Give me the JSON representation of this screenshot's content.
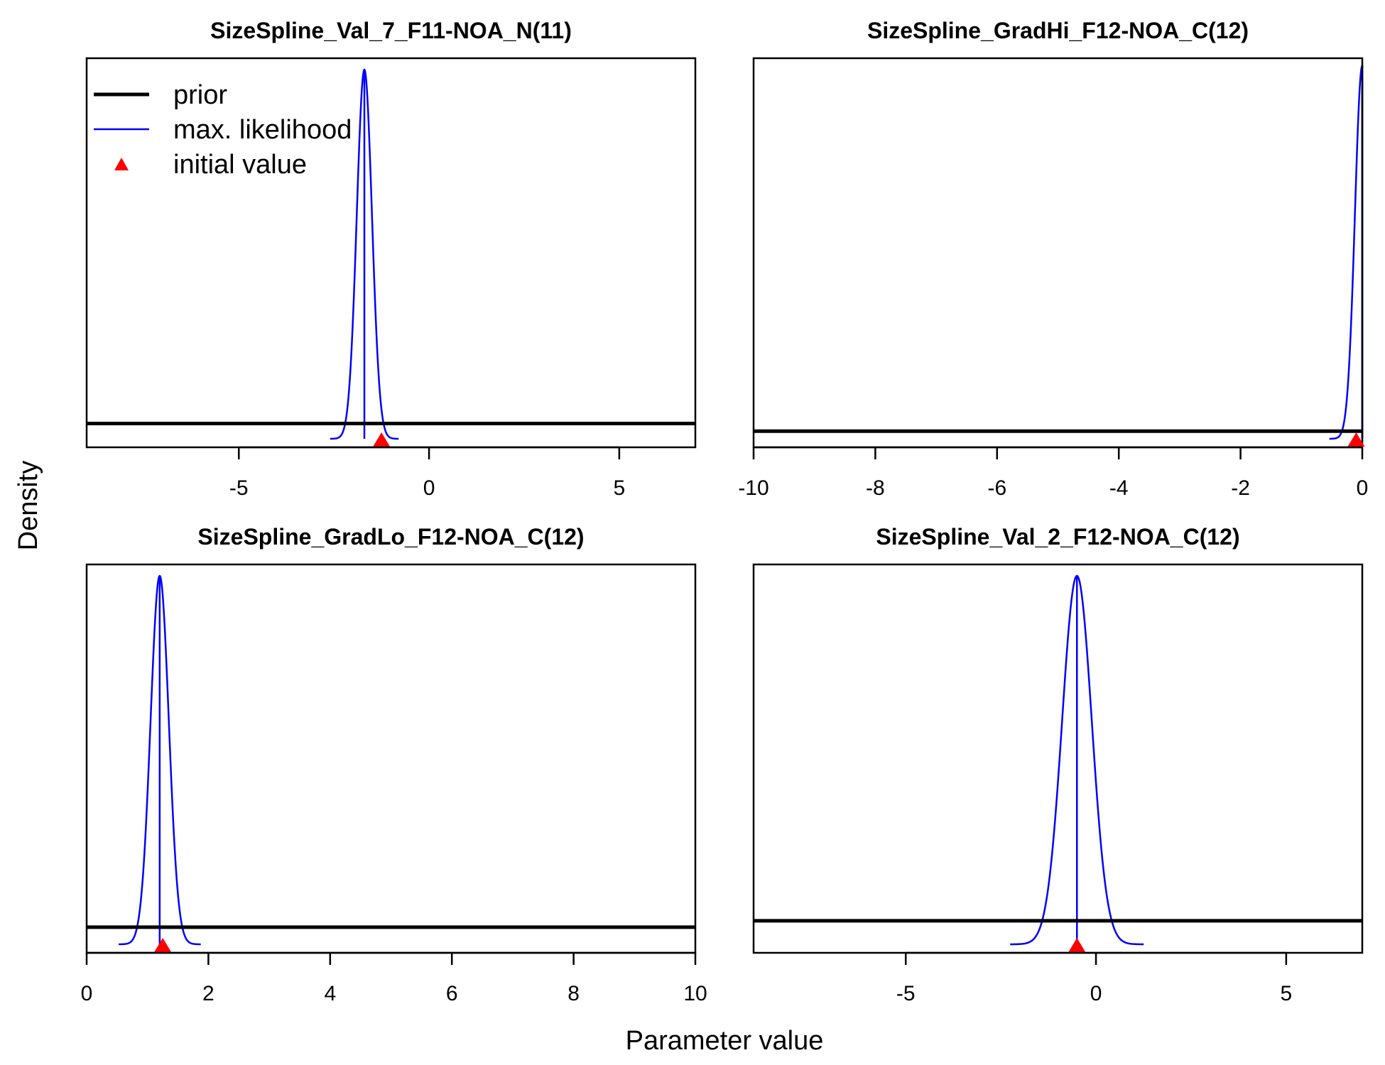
{
  "figure": {
    "xlabel": "Parameter value",
    "ylabel": "Density",
    "colors": {
      "prior": "#000000",
      "likelihood": "#0000ff",
      "initial": "#ff0000",
      "frame": "#000000"
    }
  },
  "legend": {
    "placement": "top-left of first panel",
    "items": [
      {
        "label": "prior",
        "symbol": "line",
        "color": "#000000"
      },
      {
        "label": "max. likelihood",
        "symbol": "line",
        "color": "#0000ff"
      },
      {
        "label": "initial value",
        "symbol": "triangle",
        "color": "#ff0000"
      }
    ]
  },
  "chart_data": [
    {
      "type": "line",
      "title": "SizeSpline_Val_7_F11-NOA_N(11)",
      "xlim": [
        -9,
        7
      ],
      "xticks": [
        -5,
        0,
        5
      ],
      "prior_density": 0.04,
      "likelihood": {
        "mean": -1.7,
        "sd": 0.2,
        "peak_density": 0.97
      },
      "initial_value": -1.25
    },
    {
      "type": "line",
      "title": "SizeSpline_GradHi_F12-NOA_C(12)",
      "xlim": [
        -10,
        0
      ],
      "xticks": [
        -10,
        -8,
        -6,
        -4,
        -2,
        0
      ],
      "prior_density": 0.02,
      "likelihood": {
        "mean": 0,
        "sd": 0.12,
        "peak_density": 0.98,
        "upper_bound": 0
      },
      "initial_value": -0.1
    },
    {
      "type": "line",
      "title": "SizeSpline_GradLo_F12-NOA_C(12)",
      "xlim": [
        0,
        10
      ],
      "xticks": [
        0,
        2,
        4,
        6,
        8,
        10
      ],
      "prior_density": 0.045,
      "likelihood": {
        "mean": 1.2,
        "sd": 0.15,
        "peak_density": 0.97
      },
      "initial_value": 1.25
    },
    {
      "type": "line",
      "title": "SizeSpline_Val_2_F12-NOA_C(12)",
      "xlim": [
        -9,
        7
      ],
      "xticks": [
        -5,
        0,
        5
      ],
      "prior_density": 0.062,
      "likelihood": {
        "mean": -0.5,
        "sd": 0.39,
        "peak_density": 0.97
      },
      "initial_value": -0.5
    }
  ]
}
